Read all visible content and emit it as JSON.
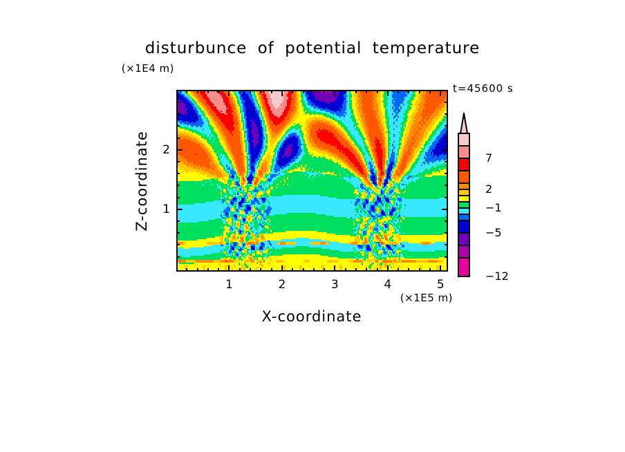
{
  "page": {
    "background": "#FFFFFF"
  },
  "chart_data": {
    "type": "filled_contour",
    "title": "disturbunce of potential temperature",
    "time_annotation": "t=45600 s",
    "x_axis": {
      "label": "X-coordinate",
      "unit": "(×1E5 m)",
      "tick_values": [
        1,
        2,
        3,
        4,
        5
      ],
      "tick_labels": [
        "1",
        "2",
        "3",
        "4",
        "5"
      ],
      "minor_tick_step": 0.2,
      "range": [
        0,
        5.14
      ]
    },
    "z_axis": {
      "label": "Z-coordinate",
      "unit": "(×1E4 m)",
      "tick_values": [
        1,
        2
      ],
      "tick_labels": [
        "1",
        "2"
      ],
      "minor_tick_step": 0.2,
      "range": [
        -0.05,
        3.01
      ]
    },
    "colorbar": {
      "levels": [
        -12,
        -9,
        -7,
        -5,
        -3,
        -2,
        -1,
        0,
        1,
        2,
        3,
        5,
        7,
        9,
        11
      ],
      "colors_low_to_high": [
        "#E8009C",
        "#AA00AA",
        "#7000B8",
        "#0000D0",
        "#0068FA",
        "#38E8FF",
        "#00E060",
        "#FFFF00",
        "#FFC800",
        "#FF8C00",
        "#FF5800",
        "#FA0000",
        "#FA8C8C",
        "#FACACA"
      ],
      "labeled_levels": [
        7,
        2,
        -1,
        -5,
        -12
      ],
      "label_texts": [
        "7",
        "2",
        "−1",
        "−5",
        "−12"
      ],
      "arrow_top": true
    },
    "field_model": {
      "description": "two convective plume columns near x=1.3 and x=3.8 with stratified horizontal layers below z≈1.5 and V-shaped gravity-wave fans of slanted stripes radiating above each plume",
      "plume_x": [
        1.32,
        3.82
      ],
      "plume_top_z": 1.15,
      "core_half_width": 0.55,
      "fan_amplitude": 4.8,
      "fan_angular_freq": 9.2,
      "blob_amplitude": 2.7,
      "core_noise_amplitude": 2.0,
      "layers": [
        {
          "z_above": 1.55,
          "value": 0.55
        },
        {
          "z_above": 1.17,
          "value": -0.5
        },
        {
          "z_above": 0.86,
          "value": -1.6
        },
        {
          "z_above": 0.56,
          "value": -0.5
        },
        {
          "z_above": 0.43,
          "value": 0.6
        },
        {
          "z_above": 0.29,
          "value": -1.6
        },
        {
          "z_above": 0.17,
          "value": -0.5
        },
        {
          "z_above": -9.0,
          "value": 0.6
        }
      ]
    }
  }
}
